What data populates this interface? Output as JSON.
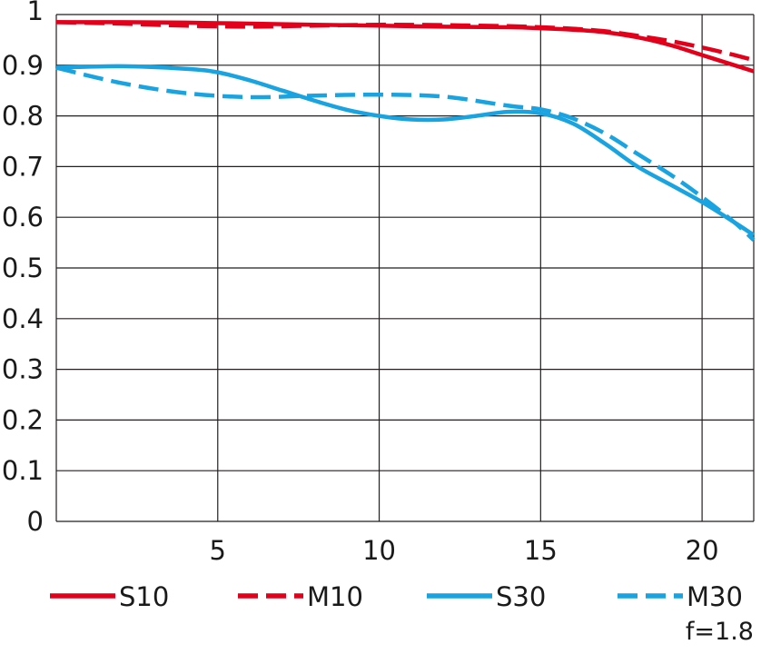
{
  "chart_data": {
    "type": "line",
    "title": "",
    "xlabel": "",
    "ylabel": "",
    "xlim": [
      0,
      21.6
    ],
    "ylim": [
      0,
      1
    ],
    "x_ticks": [
      5,
      10,
      15,
      20
    ],
    "y_ticks": [
      0,
      0.1,
      0.2,
      0.3,
      0.4,
      0.5,
      0.6,
      0.7,
      0.8,
      0.9,
      1
    ],
    "y_tick_labels": [
      "0",
      "0.1",
      "0.2",
      "0.3",
      "0.4",
      "0.5",
      "0.6",
      "0.7",
      "0.8",
      "0.9",
      "1"
    ],
    "grid": true,
    "legend_position": "bottom",
    "series": [
      {
        "name": "S10",
        "color": "#e3001b",
        "dash": "solid",
        "points": [
          [
            0,
            0.985
          ],
          [
            2,
            0.985
          ],
          [
            4,
            0.984
          ],
          [
            6,
            0.982
          ],
          [
            8,
            0.98
          ],
          [
            10,
            0.978
          ],
          [
            12,
            0.976
          ],
          [
            14,
            0.975
          ],
          [
            15,
            0.973
          ],
          [
            16,
            0.97
          ],
          [
            17,
            0.965
          ],
          [
            18,
            0.955
          ],
          [
            19,
            0.94
          ],
          [
            20,
            0.92
          ],
          [
            21,
            0.9
          ],
          [
            21.6,
            0.888
          ]
        ]
      },
      {
        "name": "M10",
        "color": "#e3001b",
        "dash": "dashed",
        "points": [
          [
            0,
            0.985
          ],
          [
            2,
            0.982
          ],
          [
            4,
            0.978
          ],
          [
            6,
            0.976
          ],
          [
            8,
            0.978
          ],
          [
            10,
            0.98
          ],
          [
            12,
            0.979
          ],
          [
            14,
            0.977
          ],
          [
            15,
            0.975
          ],
          [
            16,
            0.972
          ],
          [
            17,
            0.967
          ],
          [
            18,
            0.958
          ],
          [
            19,
            0.948
          ],
          [
            20,
            0.935
          ],
          [
            21,
            0.92
          ],
          [
            21.6,
            0.91
          ]
        ]
      },
      {
        "name": "S30",
        "color": "#19a3e0",
        "dash": "solid",
        "points": [
          [
            0,
            0.895
          ],
          [
            2,
            0.898
          ],
          [
            4,
            0.893
          ],
          [
            5,
            0.886
          ],
          [
            6,
            0.87
          ],
          [
            7,
            0.85
          ],
          [
            8,
            0.83
          ],
          [
            9,
            0.812
          ],
          [
            10,
            0.8
          ],
          [
            11,
            0.793
          ],
          [
            12,
            0.793
          ],
          [
            13,
            0.8
          ],
          [
            14,
            0.808
          ],
          [
            15,
            0.805
          ],
          [
            16,
            0.785
          ],
          [
            17,
            0.745
          ],
          [
            18,
            0.7
          ],
          [
            19,
            0.665
          ],
          [
            20,
            0.63
          ],
          [
            21,
            0.59
          ],
          [
            21.6,
            0.565
          ]
        ]
      },
      {
        "name": "M30",
        "color": "#19a3e0",
        "dash": "dashed",
        "points": [
          [
            0,
            0.895
          ],
          [
            2,
            0.865
          ],
          [
            4,
            0.845
          ],
          [
            6,
            0.837
          ],
          [
            8,
            0.84
          ],
          [
            10,
            0.842
          ],
          [
            12,
            0.838
          ],
          [
            14,
            0.82
          ],
          [
            15,
            0.813
          ],
          [
            16,
            0.795
          ],
          [
            17,
            0.765
          ],
          [
            18,
            0.725
          ],
          [
            19,
            0.685
          ],
          [
            20,
            0.64
          ],
          [
            21,
            0.59
          ],
          [
            21.6,
            0.555
          ]
        ]
      }
    ],
    "annotation": "f=1.8"
  }
}
